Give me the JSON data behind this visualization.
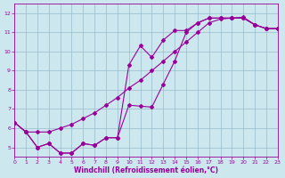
{
  "xlabel": "Windchill (Refroidissement éolien,°C)",
  "bg_color": "#cce8ee",
  "grid_color": "#99bbcc",
  "line_color": "#990099",
  "x_min": 0,
  "x_max": 23,
  "y_min": 4.5,
  "y_max": 12.5,
  "line1_x": [
    0,
    1,
    2,
    3,
    4,
    5,
    6,
    7,
    8,
    9,
    10,
    11,
    12,
    13,
    14,
    15,
    16,
    17,
    18,
    19,
    20,
    21,
    22,
    23
  ],
  "line1_y": [
    6.3,
    5.8,
    5.8,
    5.8,
    6.0,
    6.2,
    6.5,
    6.8,
    7.2,
    7.6,
    8.1,
    8.5,
    9.0,
    9.5,
    10.0,
    10.5,
    11.0,
    11.5,
    11.7,
    11.75,
    11.8,
    11.4,
    11.2,
    11.2
  ],
  "line2_x": [
    0,
    1,
    2,
    3,
    4,
    5,
    6,
    7,
    8,
    9,
    10,
    11,
    12,
    13,
    14,
    15,
    16,
    17,
    18,
    19,
    20,
    21,
    22,
    23
  ],
  "line2_y": [
    6.3,
    5.8,
    5.0,
    5.2,
    4.7,
    4.7,
    5.2,
    5.1,
    5.5,
    5.5,
    9.3,
    10.3,
    9.7,
    10.6,
    11.1,
    11.1,
    11.5,
    11.75,
    11.75,
    11.75,
    11.75,
    11.4,
    11.2,
    11.2
  ],
  "line3_x": [
    0,
    1,
    2,
    3,
    4,
    5,
    6,
    7,
    8,
    9,
    10,
    11,
    12,
    13,
    14,
    15,
    16,
    17,
    18,
    19,
    20,
    21,
    22,
    23
  ],
  "line3_y": [
    6.3,
    5.8,
    5.0,
    5.2,
    4.7,
    4.7,
    5.2,
    5.1,
    5.5,
    5.5,
    7.2,
    7.15,
    7.1,
    8.3,
    9.5,
    11.0,
    11.5,
    11.75,
    11.75,
    11.75,
    11.75,
    11.4,
    11.2,
    11.2
  ],
  "yticks": [
    5,
    6,
    7,
    8,
    9,
    10,
    11,
    12
  ],
  "xticks": [
    0,
    1,
    2,
    3,
    4,
    5,
    6,
    7,
    8,
    9,
    10,
    11,
    12,
    13,
    14,
    15,
    16,
    17,
    18,
    19,
    20,
    21,
    22,
    23
  ]
}
